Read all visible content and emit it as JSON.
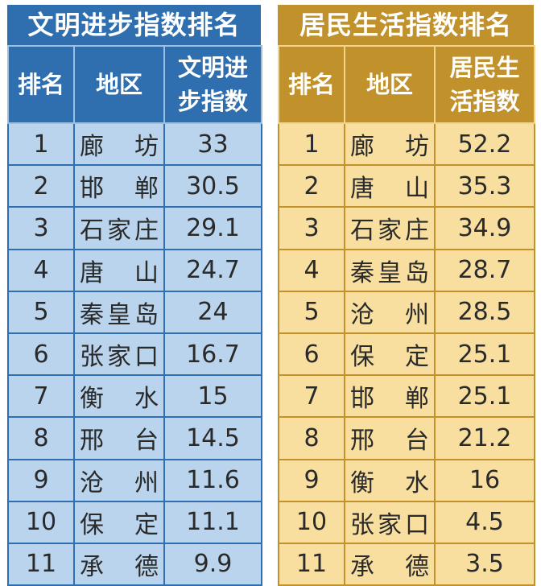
{
  "civilization": {
    "title": "文明进步指数排名",
    "headers": [
      "排名",
      "地区",
      "文明进\n步指数"
    ],
    "header_rank": "排名",
    "header_region": "地区",
    "header_index_line1": "文明进",
    "header_index_line2": "步指数",
    "rows": [
      {
        "rank": "1",
        "region": "廊坊",
        "value": "33"
      },
      {
        "rank": "2",
        "region": "邯郸",
        "value": "30.5"
      },
      {
        "rank": "3",
        "region": "石家庄",
        "value": "29.1"
      },
      {
        "rank": "4",
        "region": "唐山",
        "value": "24.7"
      },
      {
        "rank": "5",
        "region": "秦皇岛",
        "value": "24"
      },
      {
        "rank": "6",
        "region": "张家口",
        "value": "16.7"
      },
      {
        "rank": "7",
        "region": "衡水",
        "value": "15"
      },
      {
        "rank": "8",
        "region": "邢台",
        "value": "14.5"
      },
      {
        "rank": "9",
        "region": "沧州",
        "value": "11.6"
      },
      {
        "rank": "10",
        "region": "保定",
        "value": "11.1"
      },
      {
        "rank": "11",
        "region": "承德",
        "value": "9.9"
      }
    ]
  },
  "livelihood": {
    "title": "居民生活指数排名",
    "header_rank": "排名",
    "header_region": "地区",
    "header_index_line1": "居民生",
    "header_index_line2": "活指数",
    "rows": [
      {
        "rank": "1",
        "region": "廊坊",
        "value": "52.2"
      },
      {
        "rank": "2",
        "region": "唐山",
        "value": "35.3"
      },
      {
        "rank": "3",
        "region": "石家庄",
        "value": "34.9"
      },
      {
        "rank": "4",
        "region": "秦皇岛",
        "value": "28.7"
      },
      {
        "rank": "5",
        "region": "沧州",
        "value": "28.5"
      },
      {
        "rank": "6",
        "region": "保定",
        "value": "25.1"
      },
      {
        "rank": "7",
        "region": "邯郸",
        "value": "25.1"
      },
      {
        "rank": "8",
        "region": "邢台",
        "value": "21.2"
      },
      {
        "rank": "9",
        "region": "衡水",
        "value": "16"
      },
      {
        "rank": "10",
        "region": "张家口",
        "value": "4.5"
      },
      {
        "rank": "11",
        "region": "承德",
        "value": "3.5"
      }
    ]
  },
  "colors": {
    "blue_header": "#2f6fb0",
    "blue_body": "#b9d4ec",
    "gold_header": "#c1922c",
    "gold_body": "#f8dfa0"
  }
}
